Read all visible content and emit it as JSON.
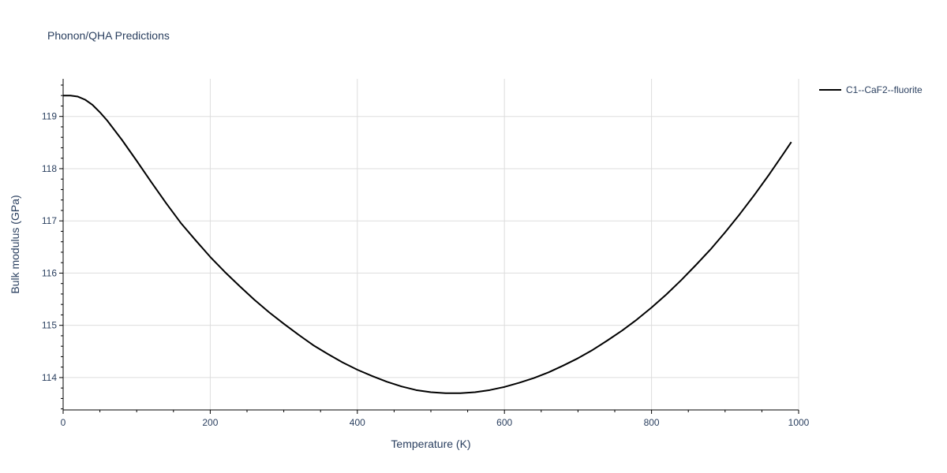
{
  "chart_data": {
    "type": "line",
    "title": "Phonon/QHA Predictions",
    "xlabel": "Temperature (K)",
    "ylabel": "Bulk modulus (GPa)",
    "xlim": [
      0,
      1000
    ],
    "ylim": [
      113.38,
      119.72
    ],
    "x_ticks": [
      0,
      200,
      400,
      600,
      800,
      1000
    ],
    "y_ticks": [
      114,
      115,
      116,
      117,
      118,
      119
    ],
    "grid": true,
    "legend_position": "top-right",
    "series": [
      {
        "name": "C1--CaF2--fluorite",
        "color": "#000000",
        "x": [
          0,
          10,
          20,
          30,
          40,
          50,
          60,
          80,
          100,
          120,
          140,
          160,
          180,
          200,
          220,
          240,
          260,
          280,
          300,
          320,
          340,
          360,
          380,
          400,
          420,
          440,
          460,
          480,
          500,
          520,
          540,
          560,
          580,
          600,
          620,
          640,
          660,
          680,
          700,
          720,
          740,
          760,
          780,
          800,
          820,
          840,
          860,
          880,
          900,
          920,
          940,
          960,
          980,
          990
        ],
        "y": [
          119.4,
          119.4,
          119.38,
          119.32,
          119.22,
          119.08,
          118.92,
          118.55,
          118.15,
          117.74,
          117.34,
          116.96,
          116.63,
          116.31,
          116.02,
          115.75,
          115.49,
          115.25,
          115.03,
          114.82,
          114.62,
          114.45,
          114.29,
          114.15,
          114.03,
          113.92,
          113.83,
          113.76,
          113.72,
          113.7,
          113.7,
          113.72,
          113.76,
          113.82,
          113.9,
          113.99,
          114.1,
          114.23,
          114.37,
          114.53,
          114.71,
          114.9,
          115.11,
          115.34,
          115.59,
          115.86,
          116.15,
          116.45,
          116.78,
          117.13,
          117.5,
          117.89,
          118.3,
          118.51
        ]
      }
    ]
  }
}
